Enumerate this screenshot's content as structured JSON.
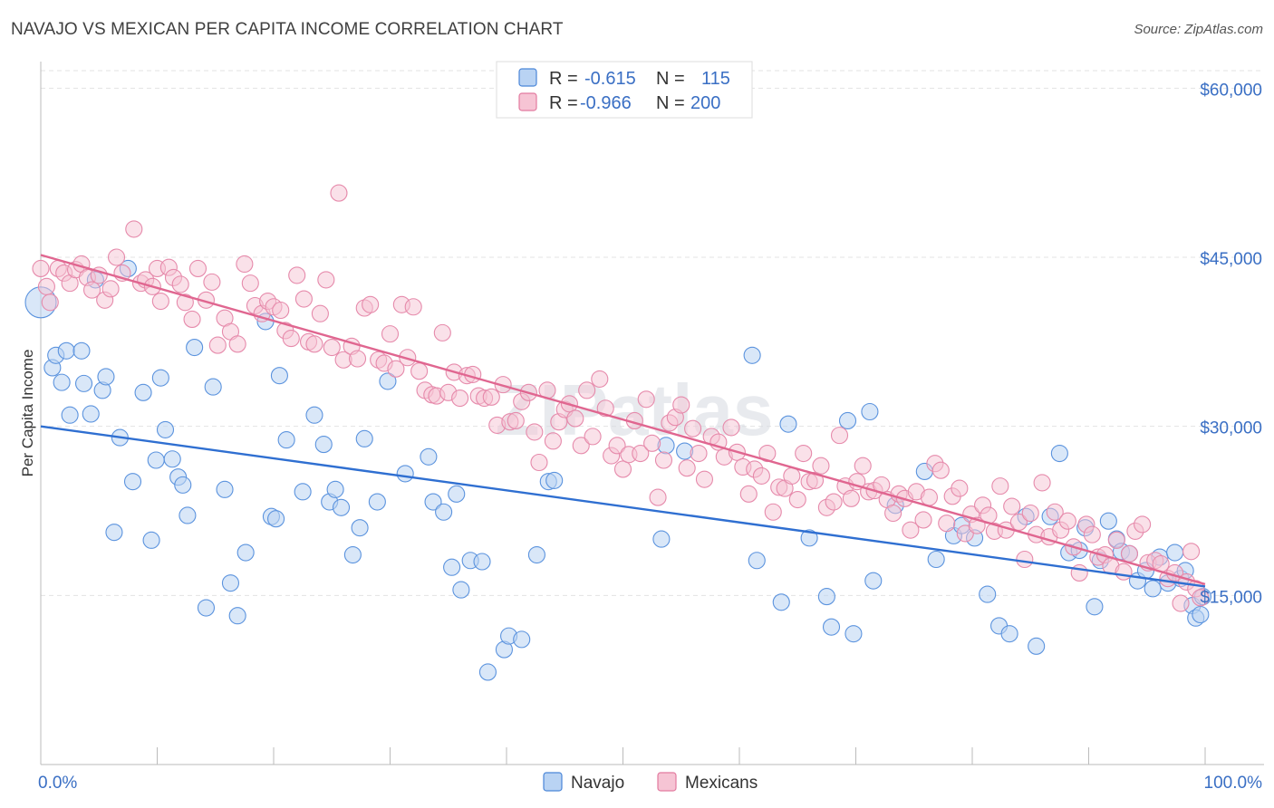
{
  "header": {
    "title": "NAVAJO VS MEXICAN PER CAPITA INCOME CORRELATION CHART",
    "source": "Source: ZipAtlas.com"
  },
  "watermark": "ZIPatlas",
  "legend": {
    "r_label": "R =",
    "n_label": "N =",
    "rows": [
      {
        "name": "Navajo",
        "r": "-0.615",
        "n": "115",
        "color": "#4a86d8",
        "fill": "#b9d3f3"
      },
      {
        "name": "Mexicans",
        "r": "-0.966",
        "n": "200",
        "color": "#e27a9f",
        "fill": "#f6c4d4"
      }
    ]
  },
  "chart_data": {
    "type": "scatter",
    "ylabel": "Per Capita Income",
    "xlim": [
      0,
      100
    ],
    "ylim": [
      0,
      63000
    ],
    "x_tick_labels": [
      "0.0%",
      "100.0%"
    ],
    "y_ticks": [
      15000,
      30000,
      45000,
      60000
    ],
    "y_tick_labels": [
      "$15,000",
      "$30,000",
      "$45,000",
      "$60,000"
    ],
    "grid": true,
    "legend_position": "top-center",
    "series": [
      {
        "name": "Navajo",
        "trend": {
          "x": [
            0,
            100
          ],
          "y": [
            30000,
            15800
          ]
        },
        "points": [
          [
            0,
            41000
          ],
          [
            1,
            35200
          ],
          [
            1.3,
            36300
          ],
          [
            1.8,
            33900
          ],
          [
            2.2,
            36700
          ],
          [
            2.5,
            31000
          ],
          [
            3.5,
            36700
          ],
          [
            3.7,
            33800
          ],
          [
            4.3,
            31100
          ],
          [
            4.7,
            43000
          ],
          [
            5.3,
            33200
          ],
          [
            5.6,
            34400
          ],
          [
            6.3,
            20600
          ],
          [
            6.8,
            29000
          ],
          [
            7.5,
            44000
          ],
          [
            7.9,
            25100
          ],
          [
            8.8,
            33000
          ],
          [
            9.5,
            19900
          ],
          [
            9.9,
            27000
          ],
          [
            10.3,
            34300
          ],
          [
            10.7,
            29700
          ],
          [
            11.3,
            27100
          ],
          [
            11.8,
            25500
          ],
          [
            12.2,
            24800
          ],
          [
            12.6,
            22100
          ],
          [
            13.2,
            37000
          ],
          [
            14.2,
            13900
          ],
          [
            14.8,
            33500
          ],
          [
            15.8,
            24400
          ],
          [
            16.3,
            16100
          ],
          [
            16.9,
            13200
          ],
          [
            17.6,
            18800
          ],
          [
            19.3,
            39300
          ],
          [
            19.8,
            22000
          ],
          [
            20.2,
            21800
          ],
          [
            20.5,
            34500
          ],
          [
            21.1,
            28800
          ],
          [
            22.5,
            24200
          ],
          [
            23.5,
            31000
          ],
          [
            24.3,
            28400
          ],
          [
            24.8,
            23300
          ],
          [
            25.3,
            24400
          ],
          [
            25.8,
            22800
          ],
          [
            26.8,
            18600
          ],
          [
            27.4,
            21000
          ],
          [
            27.8,
            28900
          ],
          [
            28.9,
            23300
          ],
          [
            29.8,
            34000
          ],
          [
            31.3,
            25800
          ],
          [
            33.3,
            27300
          ],
          [
            33.7,
            23300
          ],
          [
            34.6,
            22400
          ],
          [
            35.3,
            17500
          ],
          [
            35.7,
            24000
          ],
          [
            36.1,
            15500
          ],
          [
            36.9,
            18100
          ],
          [
            37.9,
            18000
          ],
          [
            38.4,
            8200
          ],
          [
            39.8,
            10200
          ],
          [
            40.2,
            11400
          ],
          [
            41.3,
            11100
          ],
          [
            42.6,
            18600
          ],
          [
            43.6,
            25100
          ],
          [
            44.1,
            25200
          ],
          [
            53.3,
            20000
          ],
          [
            53.7,
            28300
          ],
          [
            55.3,
            27800
          ],
          [
            61.1,
            36300
          ],
          [
            61.5,
            18100
          ],
          [
            63.6,
            14400
          ],
          [
            64.2,
            30200
          ],
          [
            66.0,
            20100
          ],
          [
            67.5,
            14900
          ],
          [
            67.9,
            12200
          ],
          [
            69.3,
            30500
          ],
          [
            69.8,
            11600
          ],
          [
            71.2,
            31300
          ],
          [
            71.5,
            16300
          ],
          [
            73.4,
            23000
          ],
          [
            75.9,
            26000
          ],
          [
            76.9,
            18200
          ],
          [
            78.4,
            20300
          ],
          [
            79.1,
            21200
          ],
          [
            80.2,
            20100
          ],
          [
            81.3,
            15100
          ],
          [
            82.3,
            12300
          ],
          [
            83.2,
            11600
          ],
          [
            84.6,
            22000
          ],
          [
            85.5,
            10500
          ],
          [
            86.7,
            22000
          ],
          [
            87.5,
            27600
          ],
          [
            88.3,
            18800
          ],
          [
            89.2,
            19000
          ],
          [
            89.7,
            21000
          ],
          [
            90.5,
            14000
          ],
          [
            91.0,
            18100
          ],
          [
            91.7,
            21600
          ],
          [
            92.4,
            20000
          ],
          [
            92.8,
            18900
          ],
          [
            93.5,
            18700
          ],
          [
            94.2,
            16300
          ],
          [
            94.9,
            17200
          ],
          [
            95.5,
            15600
          ],
          [
            96.1,
            18400
          ],
          [
            96.8,
            16100
          ],
          [
            97.4,
            18800
          ],
          [
            97.9,
            16500
          ],
          [
            98.3,
            17200
          ],
          [
            98.9,
            14100
          ],
          [
            99.2,
            13000
          ],
          [
            99.6,
            13300
          ],
          [
            99.8,
            14900
          ]
        ]
      },
      {
        "name": "Mexicans",
        "trend": {
          "x": [
            0,
            100
          ],
          "y": [
            45200,
            16000
          ]
        },
        "points": [
          [
            0,
            44000
          ],
          [
            0.5,
            42400
          ],
          [
            0.8,
            41000
          ],
          [
            1.5,
            44000
          ],
          [
            2,
            43600
          ],
          [
            2.5,
            42700
          ],
          [
            3,
            43900
          ],
          [
            3.5,
            44400
          ],
          [
            4,
            43200
          ],
          [
            4.4,
            42100
          ],
          [
            5,
            43400
          ],
          [
            5.5,
            41200
          ],
          [
            6,
            42200
          ],
          [
            6.5,
            45000
          ],
          [
            7,
            43600
          ],
          [
            8,
            47500
          ],
          [
            8.6,
            42700
          ],
          [
            9,
            43000
          ],
          [
            9.6,
            42400
          ],
          [
            10,
            44000
          ],
          [
            10.3,
            41100
          ],
          [
            11,
            44100
          ],
          [
            11.4,
            43200
          ],
          [
            12,
            42600
          ],
          [
            12.4,
            41000
          ],
          [
            13,
            39500
          ],
          [
            13.5,
            44000
          ],
          [
            14.2,
            41200
          ],
          [
            14.7,
            42800
          ],
          [
            15.2,
            37200
          ],
          [
            15.8,
            39600
          ],
          [
            16.3,
            38400
          ],
          [
            16.9,
            37300
          ],
          [
            17.5,
            44400
          ],
          [
            18,
            42700
          ],
          [
            18.4,
            40700
          ],
          [
            19,
            40000
          ],
          [
            19.5,
            41100
          ],
          [
            20,
            40600
          ],
          [
            20.6,
            40300
          ],
          [
            21,
            38500
          ],
          [
            21.5,
            37800
          ],
          [
            22,
            43400
          ],
          [
            22.6,
            41300
          ],
          [
            23,
            37500
          ],
          [
            23.5,
            37300
          ],
          [
            24,
            40000
          ],
          [
            24.5,
            43000
          ],
          [
            25,
            37000
          ],
          [
            25.6,
            50700
          ],
          [
            26,
            35900
          ],
          [
            26.7,
            37100
          ],
          [
            27.2,
            36000
          ],
          [
            27.8,
            40500
          ],
          [
            28.3,
            40800
          ],
          [
            29,
            35900
          ],
          [
            29.5,
            35600
          ],
          [
            30,
            38200
          ],
          [
            30.5,
            35100
          ],
          [
            31,
            40800
          ],
          [
            31.5,
            36100
          ],
          [
            32,
            40600
          ],
          [
            32.5,
            34900
          ],
          [
            33,
            33200
          ],
          [
            33.6,
            32800
          ],
          [
            34,
            32700
          ],
          [
            34.5,
            38300
          ],
          [
            35,
            33000
          ],
          [
            35.5,
            34800
          ],
          [
            36,
            32500
          ],
          [
            36.6,
            34500
          ],
          [
            37.1,
            34600
          ],
          [
            37.6,
            32700
          ],
          [
            38.1,
            32500
          ],
          [
            38.7,
            32600
          ],
          [
            39.2,
            30100
          ],
          [
            39.7,
            33700
          ],
          [
            40.3,
            30400
          ],
          [
            40.8,
            30500
          ],
          [
            41.3,
            32200
          ],
          [
            41.9,
            33000
          ],
          [
            42.4,
            29500
          ],
          [
            42.8,
            26800
          ],
          [
            43.5,
            33200
          ],
          [
            44,
            28700
          ],
          [
            44.5,
            30400
          ],
          [
            45,
            31500
          ],
          [
            45.4,
            32000
          ],
          [
            45.9,
            30700
          ],
          [
            46.4,
            28300
          ],
          [
            46.9,
            33200
          ],
          [
            47.4,
            29100
          ],
          [
            48,
            34200
          ],
          [
            48.5,
            31600
          ],
          [
            49,
            27400
          ],
          [
            49.5,
            28300
          ],
          [
            50,
            26200
          ],
          [
            50.5,
            27500
          ],
          [
            51,
            30500
          ],
          [
            51.5,
            27600
          ],
          [
            52,
            32400
          ],
          [
            52.5,
            28500
          ],
          [
            53,
            23700
          ],
          [
            53.5,
            27000
          ],
          [
            54,
            30300
          ],
          [
            54.5,
            30800
          ],
          [
            55,
            31900
          ],
          [
            55.5,
            26300
          ],
          [
            56,
            29800
          ],
          [
            56.5,
            27600
          ],
          [
            57,
            25300
          ],
          [
            57.6,
            29100
          ],
          [
            58.2,
            28600
          ],
          [
            58.7,
            27300
          ],
          [
            59.3,
            29900
          ],
          [
            59.8,
            27700
          ],
          [
            60.3,
            26400
          ],
          [
            60.8,
            24000
          ],
          [
            61.3,
            26200
          ],
          [
            61.9,
            25600
          ],
          [
            62.4,
            27600
          ],
          [
            62.9,
            22400
          ],
          [
            63.4,
            24600
          ],
          [
            63.9,
            24500
          ],
          [
            64.5,
            25600
          ],
          [
            65,
            23500
          ],
          [
            65.5,
            27600
          ],
          [
            66,
            25100
          ],
          [
            66.5,
            25200
          ],
          [
            67,
            26500
          ],
          [
            67.5,
            22800
          ],
          [
            68.1,
            23300
          ],
          [
            68.6,
            29200
          ],
          [
            69.1,
            24700
          ],
          [
            69.6,
            23600
          ],
          [
            70.1,
            25100
          ],
          [
            70.6,
            26500
          ],
          [
            71.1,
            24200
          ],
          [
            71.6,
            24300
          ],
          [
            72.2,
            24800
          ],
          [
            72.7,
            23500
          ],
          [
            73.2,
            22300
          ],
          [
            73.7,
            24000
          ],
          [
            74.2,
            23600
          ],
          [
            74.7,
            20800
          ],
          [
            75.2,
            24200
          ],
          [
            75.8,
            21700
          ],
          [
            76.3,
            23700
          ],
          [
            76.8,
            26700
          ],
          [
            77.3,
            26100
          ],
          [
            77.8,
            21400
          ],
          [
            78.3,
            23800
          ],
          [
            78.9,
            24500
          ],
          [
            79.4,
            20500
          ],
          [
            79.9,
            22200
          ],
          [
            80.4,
            21200
          ],
          [
            80.9,
            23000
          ],
          [
            81.4,
            22100
          ],
          [
            81.9,
            20700
          ],
          [
            82.4,
            24700
          ],
          [
            82.9,
            20800
          ],
          [
            83.4,
            22900
          ],
          [
            84,
            21500
          ],
          [
            84.5,
            18200
          ],
          [
            85,
            22300
          ],
          [
            85.5,
            20400
          ],
          [
            86,
            25000
          ],
          [
            86.6,
            20200
          ],
          [
            87.1,
            22400
          ],
          [
            87.6,
            20800
          ],
          [
            88.2,
            21600
          ],
          [
            88.7,
            19300
          ],
          [
            89.2,
            17000
          ],
          [
            89.8,
            21300
          ],
          [
            90.3,
            20400
          ],
          [
            90.8,
            18400
          ],
          [
            91.4,
            18600
          ],
          [
            91.9,
            17600
          ],
          [
            92.4,
            19900
          ],
          [
            93,
            17100
          ],
          [
            93.5,
            18700
          ],
          [
            94,
            20700
          ],
          [
            94.6,
            21300
          ],
          [
            95.1,
            17900
          ],
          [
            95.7,
            18100
          ],
          [
            96.2,
            17800
          ],
          [
            96.8,
            16500
          ],
          [
            97.4,
            17000
          ],
          [
            97.9,
            14300
          ],
          [
            98.4,
            16200
          ],
          [
            98.8,
            18900
          ],
          [
            99.2,
            15600
          ],
          [
            99.6,
            14800
          ]
        ]
      }
    ]
  }
}
